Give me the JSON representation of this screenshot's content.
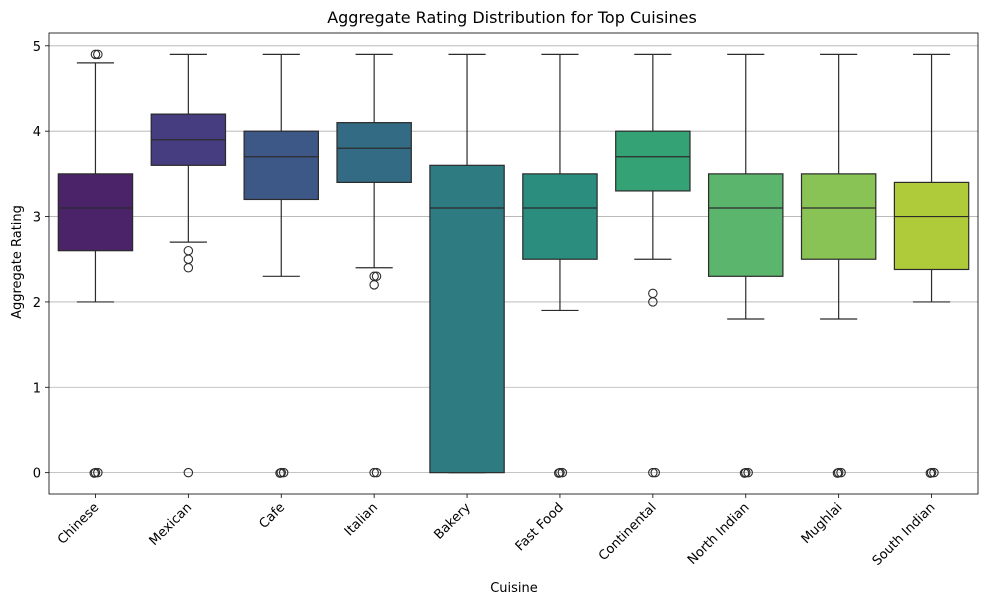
{
  "chart_data": {
    "type": "boxplot",
    "title": "Aggregate Rating Distribution for Top Cuisines",
    "xlabel": "Cuisine",
    "ylabel": "Aggregate Rating",
    "ylim": [
      -0.25,
      5.15
    ],
    "yticks": [
      0,
      1,
      2,
      3,
      4,
      5
    ],
    "grid": "horizontal",
    "categories": [
      "Chinese",
      "Mexican",
      "Cafe",
      "Italian",
      "Bakery",
      "Fast Food",
      "Continental",
      "North Indian",
      "Mughlai",
      "South Indian"
    ],
    "boxes": [
      {
        "name": "Chinese",
        "color": "#4a2369",
        "q1": 2.6,
        "median": 3.1,
        "q3": 3.5,
        "whisker_low": 2.0,
        "whisker_high": 4.8,
        "outliers": [
          4.9,
          4.9,
          0,
          0,
          0
        ]
      },
      {
        "name": "Mexican",
        "color": "#463c80",
        "q1": 3.6,
        "median": 3.9,
        "q3": 4.2,
        "whisker_low": 2.7,
        "whisker_high": 4.9,
        "outliers": [
          2.6,
          2.5,
          2.4,
          0
        ]
      },
      {
        "name": "Cafe",
        "color": "#3d5787",
        "q1": 3.2,
        "median": 3.7,
        "q3": 4.0,
        "whisker_low": 2.3,
        "whisker_high": 4.9,
        "outliers": [
          0,
          0,
          0
        ]
      },
      {
        "name": "Italian",
        "color": "#336b84",
        "q1": 3.4,
        "median": 3.8,
        "q3": 4.1,
        "whisker_low": 2.4,
        "whisker_high": 4.9,
        "outliers": [
          2.3,
          2.3,
          2.2,
          0,
          0
        ]
      },
      {
        "name": "Bakery",
        "color": "#2e7b82",
        "q1": 0.0,
        "median": 3.1,
        "q3": 3.6,
        "whisker_low": 0.0,
        "whisker_high": 4.9,
        "outliers": []
      },
      {
        "name": "Fast Food",
        "color": "#2a8d7d",
        "q1": 2.5,
        "median": 3.1,
        "q3": 3.5,
        "whisker_low": 1.9,
        "whisker_high": 4.9,
        "outliers": [
          0,
          0,
          0
        ]
      },
      {
        "name": "Continental",
        "color": "#35a276",
        "q1": 3.3,
        "median": 3.7,
        "q3": 4.0,
        "whisker_low": 2.5,
        "whisker_high": 4.9,
        "outliers": [
          2.1,
          2.0,
          0,
          0
        ]
      },
      {
        "name": "North Indian",
        "color": "#5cb56d",
        "q1": 2.3,
        "median": 3.1,
        "q3": 3.5,
        "whisker_low": 1.8,
        "whisker_high": 4.9,
        "outliers": [
          0,
          0,
          0
        ]
      },
      {
        "name": "Mughlai",
        "color": "#89c355",
        "q1": 2.5,
        "median": 3.1,
        "q3": 3.5,
        "whisker_low": 1.8,
        "whisker_high": 4.9,
        "outliers": [
          0,
          0,
          0
        ]
      },
      {
        "name": "South Indian",
        "color": "#b0cb3a",
        "q1": 2.38,
        "median": 3.0,
        "q3": 3.4,
        "whisker_low": 2.0,
        "whisker_high": 4.9,
        "outliers": [
          0,
          0,
          0
        ]
      }
    ]
  }
}
